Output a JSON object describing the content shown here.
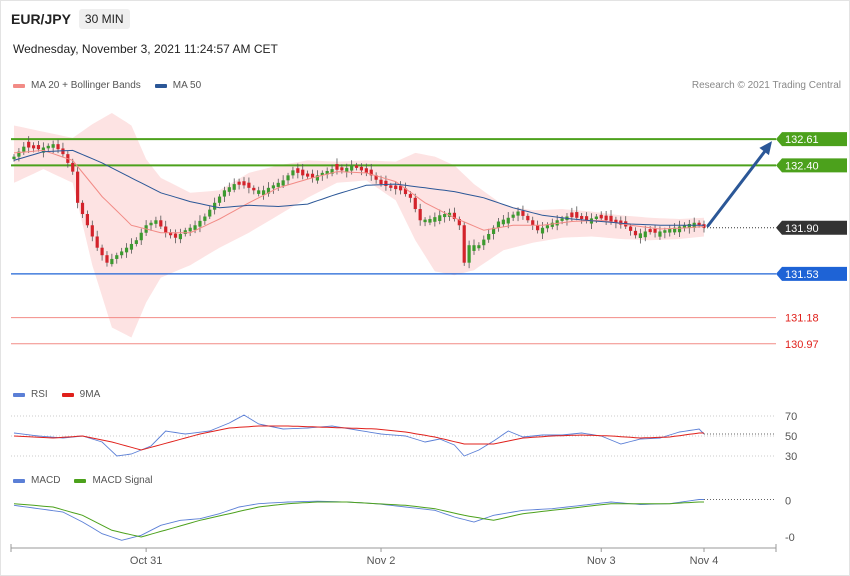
{
  "header": {
    "pair": "EUR/JPY",
    "timeframe": "30 MIN",
    "datetime": "Wednesday, November 3, 2021 11:24:57 AM CET"
  },
  "legends": {
    "price": [
      {
        "label": "MA 20 + Bollinger Bands",
        "color": "#f28b86"
      },
      {
        "label": "MA 50",
        "color": "#2b5797"
      }
    ],
    "rsi": [
      {
        "label": "RSI",
        "color": "#5b7fd6"
      },
      {
        "label": "9MA",
        "color": "#e0201b"
      }
    ],
    "macd": [
      {
        "label": "MACD",
        "color": "#5b7fd6"
      },
      {
        "label": "MACD Signal",
        "color": "#4ca11c"
      }
    ]
  },
  "credit": "Research © 2021 Trading Central",
  "chart_data": {
    "type": "candlestick",
    "price_range": [
      130.92,
      132.86
    ],
    "x_ticks": [
      {
        "label": "Oct 31",
        "index": 27
      },
      {
        "label": "Nov 2",
        "index": 75
      },
      {
        "label": "Nov 3",
        "index": 120
      },
      {
        "label": "Nov 4",
        "index": 141
      }
    ],
    "levels": [
      {
        "label": "132.61",
        "value": 132.61,
        "kind": "resistance",
        "color": "#4ca11c"
      },
      {
        "label": "132.40",
        "value": 132.4,
        "kind": "resistance",
        "color": "#4ca11c"
      },
      {
        "label": "131.90",
        "value": 131.9,
        "kind": "last",
        "color": "#333333"
      },
      {
        "label": "131.53",
        "value": 131.53,
        "kind": "pivot",
        "color": "#1e63d6"
      },
      {
        "label": "131.18",
        "value": 131.18,
        "kind": "support",
        "color": "#e0201b"
      },
      {
        "label": "130.97",
        "value": 130.97,
        "kind": "support",
        "color": "#e0201b"
      }
    ],
    "projection": {
      "from_value": 131.9,
      "to_value": 132.61
    },
    "close_path": [
      [
        0,
        132.47
      ],
      [
        2,
        132.55
      ],
      [
        5,
        132.53
      ],
      [
        8,
        132.57
      ],
      [
        10,
        132.49
      ],
      [
        12,
        132.35
      ],
      [
        13,
        132.1
      ],
      [
        15,
        131.92
      ],
      [
        17,
        131.74
      ],
      [
        19,
        131.62
      ],
      [
        21,
        131.68
      ],
      [
        23,
        131.74
      ],
      [
        25,
        131.8
      ],
      [
        27,
        131.92
      ],
      [
        29,
        131.96
      ],
      [
        31,
        131.86
      ],
      [
        33,
        131.82
      ],
      [
        35,
        131.88
      ],
      [
        37,
        131.92
      ],
      [
        39,
        131.99
      ],
      [
        41,
        132.1
      ],
      [
        43,
        132.2
      ],
      [
        45,
        132.25
      ],
      [
        47,
        132.24
      ],
      [
        49,
        132.2
      ],
      [
        51,
        132.2
      ],
      [
        53,
        132.24
      ],
      [
        55,
        132.28
      ],
      [
        57,
        132.36
      ],
      [
        59,
        132.32
      ],
      [
        61,
        132.3
      ],
      [
        63,
        132.34
      ],
      [
        65,
        132.37
      ],
      [
        67,
        132.36
      ],
      [
        69,
        132.4
      ],
      [
        71,
        132.36
      ],
      [
        73,
        132.32
      ],
      [
        75,
        132.25
      ],
      [
        77,
        132.22
      ],
      [
        79,
        132.2
      ],
      [
        81,
        132.14
      ],
      [
        83,
        131.96
      ],
      [
        85,
        131.97
      ],
      [
        87,
        132.0
      ],
      [
        89,
        132.02
      ],
      [
        91,
        131.92
      ],
      [
        92,
        131.62
      ],
      [
        93,
        131.76
      ],
      [
        95,
        131.76
      ],
      [
        97,
        131.85
      ],
      [
        99,
        131.95
      ],
      [
        101,
        131.98
      ],
      [
        103,
        132.03
      ],
      [
        105,
        131.96
      ],
      [
        107,
        131.88
      ],
      [
        109,
        131.92
      ],
      [
        111,
        131.96
      ],
      [
        113,
        131.99
      ],
      [
        115,
        131.98
      ],
      [
        117,
        131.96
      ],
      [
        119,
        131.99
      ],
      [
        121,
        131.96
      ],
      [
        123,
        131.94
      ],
      [
        125,
        131.91
      ],
      [
        127,
        131.84
      ],
      [
        129,
        131.87
      ],
      [
        131,
        131.86
      ],
      [
        133,
        131.88
      ],
      [
        135,
        131.9
      ],
      [
        137,
        131.92
      ],
      [
        139,
        131.94
      ],
      [
        141,
        131.9
      ]
    ],
    "ma20_path": [
      [
        0,
        132.5
      ],
      [
        6,
        132.52
      ],
      [
        12,
        132.44
      ],
      [
        18,
        132.15
      ],
      [
        24,
        131.92
      ],
      [
        30,
        131.86
      ],
      [
        36,
        131.86
      ],
      [
        42,
        131.97
      ],
      [
        48,
        132.1
      ],
      [
        54,
        132.22
      ],
      [
        60,
        132.29
      ],
      [
        66,
        132.35
      ],
      [
        72,
        132.34
      ],
      [
        78,
        132.27
      ],
      [
        84,
        132.1
      ],
      [
        90,
        131.98
      ],
      [
        96,
        131.88
      ],
      [
        102,
        131.92
      ],
      [
        108,
        131.92
      ],
      [
        114,
        131.95
      ],
      [
        120,
        131.96
      ],
      [
        126,
        131.92
      ],
      [
        132,
        131.89
      ],
      [
        138,
        131.9
      ],
      [
        141,
        131.91
      ]
    ],
    "ma50_path": [
      [
        0,
        132.44
      ],
      [
        6,
        132.51
      ],
      [
        12,
        132.52
      ],
      [
        18,
        132.42
      ],
      [
        24,
        132.3
      ],
      [
        30,
        132.18
      ],
      [
        36,
        132.11
      ],
      [
        42,
        132.06
      ],
      [
        48,
        132.08
      ],
      [
        54,
        132.07
      ],
      [
        60,
        132.09
      ],
      [
        66,
        132.17
      ],
      [
        72,
        132.24
      ],
      [
        78,
        132.25
      ],
      [
        84,
        132.22
      ],
      [
        90,
        132.19
      ],
      [
        96,
        132.14
      ],
      [
        102,
        132.06
      ],
      [
        108,
        132.0
      ],
      [
        114,
        131.97
      ],
      [
        120,
        131.95
      ],
      [
        126,
        131.93
      ],
      [
        132,
        131.92
      ],
      [
        138,
        131.92
      ],
      [
        141,
        131.92
      ]
    ],
    "bb_upper": [
      [
        0,
        132.72
      ],
      [
        6,
        132.67
      ],
      [
        12,
        132.62
      ],
      [
        16,
        132.73
      ],
      [
        20,
        132.82
      ],
      [
        24,
        132.72
      ],
      [
        27,
        132.45
      ],
      [
        30,
        132.3
      ],
      [
        36,
        132.18
      ],
      [
        42,
        132.2
      ],
      [
        48,
        132.34
      ],
      [
        54,
        132.4
      ],
      [
        60,
        132.44
      ],
      [
        66,
        132.43
      ],
      [
        72,
        132.44
      ],
      [
        78,
        132.43
      ],
      [
        82,
        132.5
      ],
      [
        86,
        132.47
      ],
      [
        90,
        132.4
      ],
      [
        94,
        132.25
      ],
      [
        100,
        132.08
      ],
      [
        106,
        132.04
      ],
      [
        112,
        132.05
      ],
      [
        118,
        132.03
      ],
      [
        124,
        132.0
      ],
      [
        130,
        131.98
      ],
      [
        136,
        131.97
      ],
      [
        141,
        131.98
      ]
    ],
    "bb_lower": [
      [
        0,
        132.26
      ],
      [
        6,
        132.37
      ],
      [
        12,
        132.26
      ],
      [
        16,
        131.6
      ],
      [
        20,
        131.1
      ],
      [
        24,
        131.02
      ],
      [
        27,
        131.3
      ],
      [
        30,
        131.5
      ],
      [
        36,
        131.6
      ],
      [
        42,
        131.74
      ],
      [
        48,
        131.86
      ],
      [
        54,
        132.0
      ],
      [
        60,
        132.14
      ],
      [
        66,
        132.26
      ],
      [
        72,
        132.28
      ],
      [
        78,
        132.12
      ],
      [
        82,
        131.8
      ],
      [
        86,
        131.55
      ],
      [
        90,
        131.52
      ],
      [
        94,
        131.56
      ],
      [
        100,
        131.72
      ],
      [
        106,
        131.78
      ],
      [
        112,
        131.82
      ],
      [
        118,
        131.83
      ],
      [
        124,
        131.81
      ],
      [
        130,
        131.8
      ],
      [
        136,
        131.81
      ],
      [
        141,
        131.83
      ]
    ],
    "rsi": {
      "levels": [
        {
          "label": "70",
          "value": 70
        },
        {
          "label": "50",
          "value": 50
        },
        {
          "label": "30",
          "value": 30
        }
      ],
      "range": [
        20,
        80
      ],
      "rsi_path": [
        [
          0,
          53
        ],
        [
          5,
          50
        ],
        [
          10,
          48
        ],
        [
          14,
          50
        ],
        [
          18,
          44
        ],
        [
          21,
          30
        ],
        [
          24,
          32
        ],
        [
          28,
          40
        ],
        [
          31,
          55
        ],
        [
          35,
          52
        ],
        [
          40,
          55
        ],
        [
          44,
          63
        ],
        [
          47,
          71
        ],
        [
          50,
          62
        ],
        [
          55,
          57
        ],
        [
          60,
          58
        ],
        [
          65,
          60
        ],
        [
          70,
          56
        ],
        [
          75,
          52
        ],
        [
          80,
          50
        ],
        [
          84,
          44
        ],
        [
          87,
          47
        ],
        [
          90,
          41
        ],
        [
          92,
          30
        ],
        [
          95,
          36
        ],
        [
          98,
          45
        ],
        [
          101,
          55
        ],
        [
          104,
          49
        ],
        [
          108,
          51
        ],
        [
          112,
          51
        ],
        [
          116,
          53
        ],
        [
          120,
          50
        ],
        [
          124,
          42
        ],
        [
          128,
          47
        ],
        [
          132,
          48
        ],
        [
          136,
          54
        ],
        [
          140,
          57
        ],
        [
          141,
          52
        ]
      ],
      "ma9_path": [
        [
          0,
          50
        ],
        [
          8,
          48
        ],
        [
          14,
          50
        ],
        [
          20,
          44
        ],
        [
          26,
          36
        ],
        [
          32,
          44
        ],
        [
          38,
          52
        ],
        [
          44,
          58
        ],
        [
          50,
          60
        ],
        [
          56,
          60
        ],
        [
          62,
          59
        ],
        [
          68,
          58
        ],
        [
          74,
          57
        ],
        [
          80,
          54
        ],
        [
          86,
          49
        ],
        [
          92,
          42
        ],
        [
          98,
          42
        ],
        [
          104,
          48
        ],
        [
          110,
          50
        ],
        [
          116,
          51
        ],
        [
          122,
          50
        ],
        [
          128,
          48
        ],
        [
          134,
          49
        ],
        [
          140,
          53
        ],
        [
          141,
          53
        ]
      ]
    },
    "macd": {
      "tick_labels": [
        {
          "label": "0",
          "value": 0
        },
        {
          "label": "-0",
          "value": -0.22
        }
      ],
      "range": [
        -0.28,
        0.08
      ],
      "macd_path": [
        [
          0,
          -0.03
        ],
        [
          5,
          -0.05
        ],
        [
          10,
          -0.07
        ],
        [
          14,
          -0.13
        ],
        [
          18,
          -0.2
        ],
        [
          22,
          -0.24
        ],
        [
          26,
          -0.21
        ],
        [
          30,
          -0.15
        ],
        [
          34,
          -0.12
        ],
        [
          38,
          -0.11
        ],
        [
          42,
          -0.08
        ],
        [
          46,
          -0.04
        ],
        [
          50,
          -0.02
        ],
        [
          56,
          -0.01
        ],
        [
          62,
          -0.005
        ],
        [
          68,
          -0.01
        ],
        [
          74,
          -0.02
        ],
        [
          80,
          -0.04
        ],
        [
          86,
          -0.06
        ],
        [
          90,
          -0.1
        ],
        [
          94,
          -0.13
        ],
        [
          98,
          -0.09
        ],
        [
          104,
          -0.06
        ],
        [
          110,
          -0.05
        ],
        [
          116,
          -0.03
        ],
        [
          122,
          -0.01
        ],
        [
          128,
          -0.025
        ],
        [
          134,
          -0.02
        ],
        [
          140,
          0.005
        ],
        [
          141,
          0.005
        ]
      ],
      "signal_path": [
        [
          0,
          -0.02
        ],
        [
          8,
          -0.04
        ],
        [
          14,
          -0.09
        ],
        [
          20,
          -0.18
        ],
        [
          26,
          -0.22
        ],
        [
          32,
          -0.17
        ],
        [
          38,
          -0.12
        ],
        [
          44,
          -0.08
        ],
        [
          50,
          -0.04
        ],
        [
          56,
          -0.02
        ],
        [
          62,
          -0.01
        ],
        [
          68,
          -0.01
        ],
        [
          74,
          -0.02
        ],
        [
          80,
          -0.03
        ],
        [
          86,
          -0.05
        ],
        [
          92,
          -0.09
        ],
        [
          98,
          -0.12
        ],
        [
          104,
          -0.08
        ],
        [
          110,
          -0.06
        ],
        [
          116,
          -0.04
        ],
        [
          122,
          -0.02
        ],
        [
          128,
          -0.02
        ],
        [
          134,
          -0.02
        ],
        [
          140,
          -0.01
        ],
        [
          141,
          -0.01
        ]
      ]
    }
  }
}
